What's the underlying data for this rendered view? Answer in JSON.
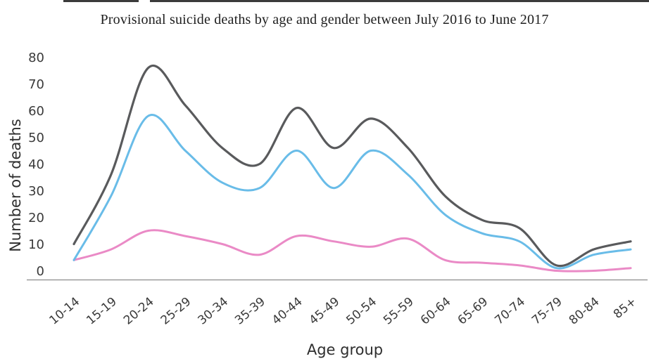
{
  "page": {
    "title": "Provisional suicide deaths by age and gender between July 2016 to June 2017"
  },
  "chart": {
    "title": "Provisional suicide deaths by age and gender between July 2016 to June 2017",
    "xlabel": "Age group",
    "ylabel": "Number of deaths"
  },
  "chart_data": {
    "type": "line",
    "title": "Provisional suicide deaths by age and gender between July 2016 to June 2017",
    "xlabel": "Age group",
    "ylabel": "Number of deaths",
    "categories": [
      "10-14",
      "15-19",
      "20-24",
      "25-29",
      "30-34",
      "35-39",
      "40-44",
      "45-49",
      "50-54",
      "55-59",
      "60-64",
      "65-69",
      "70-74",
      "75-79",
      "80-84",
      "85+"
    ],
    "series": [
      {
        "name": "dark-gray-line",
        "color": "#595a5c",
        "stroke_width": 3.2,
        "values": [
          10,
          36,
          76,
          62,
          46,
          40,
          61,
          46,
          57,
          46,
          28,
          19,
          16,
          2,
          8,
          11
        ]
      },
      {
        "name": "blue-line",
        "color": "#69bce8",
        "stroke_width": 3,
        "values": [
          4,
          28,
          58,
          45,
          33,
          31,
          45,
          31,
          45,
          36,
          21,
          14,
          11,
          1,
          6,
          8
        ]
      },
      {
        "name": "pink-line",
        "color": "#ea8ac6",
        "stroke_width": 3,
        "values": [
          4,
          8,
          15,
          13,
          10,
          6,
          13,
          11,
          9,
          12,
          4,
          3,
          2,
          0,
          0,
          1
        ]
      }
    ],
    "ylim": [
      0,
      80
    ],
    "yticks": [
      0,
      10,
      20,
      30,
      40,
      50,
      60,
      70,
      80
    ],
    "grid": false,
    "legend": "none",
    "smoothing": "spline",
    "axis_line_color": "#999999",
    "tick_label_color": "#3a3a3a"
  }
}
